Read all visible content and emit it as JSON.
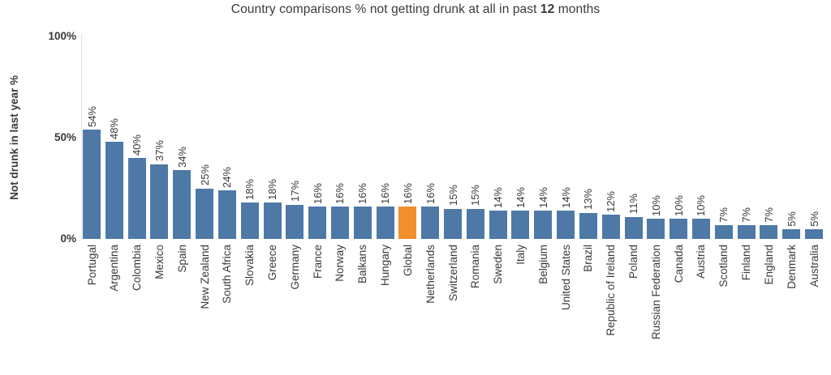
{
  "title": {
    "prefix": "Country comparisons % not getting drunk at all in past ",
    "bold": "12",
    "suffix": " months"
  },
  "y_axis": {
    "label": "Not drunk in last year %",
    "ticks": [
      "100%",
      "50%",
      "0%"
    ]
  },
  "chart_data": {
    "type": "bar",
    "title": "Country comparisons % not getting drunk at all in past 12 months",
    "ylabel": "Not drunk in last year %",
    "xlabel": "",
    "ylim": [
      0,
      100
    ],
    "ytick_values": [
      100,
      50,
      0
    ],
    "grid": false,
    "value_suffix": "%",
    "bar_color": "#4E79A7",
    "highlight_color": "#F28E2B",
    "highlight_category": "Global",
    "highlight_index": 14,
    "categories": [
      "Portugal",
      "Argentina",
      "Colombia",
      "Mexico",
      "Spain",
      "New Zealand",
      "South Africa",
      "Slovakia",
      "Greece",
      "Germany",
      "France",
      "Norway",
      "Balkans",
      "Hungary",
      "Global",
      "Netherlands",
      "Switzerland",
      "Romania",
      "Sweden",
      "Italy",
      "Belgium",
      "United States",
      "Brazil",
      "Republic of Ireland",
      "Poland",
      "Russian Federation",
      "Canada",
      "Austria",
      "Scotland",
      "Finland",
      "England",
      "Denmark",
      "Australia"
    ],
    "values": [
      54,
      48,
      40,
      37,
      34,
      25,
      24,
      18,
      18,
      17,
      16,
      16,
      16,
      16,
      16,
      16,
      15,
      15,
      14,
      14,
      14,
      14,
      13,
      12,
      11,
      10,
      10,
      10,
      7,
      7,
      7,
      5,
      5
    ]
  },
  "colors": {
    "text": "#3a3a3a",
    "axis_line": "#e2e2e2",
    "background": "#ffffff"
  }
}
